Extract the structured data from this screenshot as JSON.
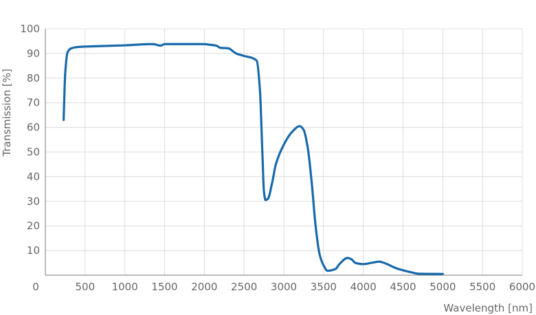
{
  "chart_data": {
    "type": "line",
    "title": "",
    "xlabel": "Wavelength [nm]",
    "ylabel": "Transmission [%]",
    "xlim": [
      0,
      6000
    ],
    "ylim": [
      0,
      100
    ],
    "grid": true,
    "x_ticks": [
      0,
      500,
      1000,
      1500,
      2000,
      2500,
      3000,
      3500,
      4000,
      4500,
      5000,
      5500,
      6000
    ],
    "y_ticks": [
      10,
      20,
      30,
      40,
      50,
      60,
      70,
      80,
      90,
      100
    ],
    "x_tick_labels": [
      "0",
      "500",
      "1000",
      "1500",
      "2000",
      "2500",
      "3000",
      "3500",
      "4000",
      "4500",
      "5000",
      "5500",
      "6000"
    ],
    "y_tick_labels": [
      "10",
      "20",
      "30",
      "40",
      "50",
      "60",
      "70",
      "80",
      "90",
      "100"
    ],
    "series": [
      {
        "color": "#1769aa",
        "x": [
          230,
          250,
          280,
          320,
          400,
          500,
          700,
          1000,
          1350,
          1450,
          1500,
          1700,
          2000,
          2050,
          2150,
          2200,
          2300,
          2400,
          2500,
          2600,
          2660,
          2700,
          2730,
          2750,
          2770,
          2800,
          2850,
          2900,
          3000,
          3100,
          3200,
          3250,
          3300,
          3350,
          3400,
          3450,
          3500,
          3550,
          3650,
          3700,
          3800,
          3850,
          3900,
          4000,
          4100,
          4200,
          4300,
          4400,
          4500,
          4600,
          4700,
          5000
        ],
        "y": [
          63,
          82,
          90.5,
          92,
          92.6,
          92.8,
          93,
          93.3,
          93.8,
          93.2,
          93.8,
          93.8,
          93.8,
          93.6,
          93.2,
          92.3,
          92.1,
          90,
          89,
          88.2,
          87,
          75,
          50,
          34,
          30.5,
          31,
          37,
          45,
          53,
          58,
          60.5,
          59,
          52,
          38,
          20,
          8.5,
          4,
          1.8,
          2.5,
          4.5,
          7,
          6.5,
          5,
          4.5,
          5,
          5.5,
          4.5,
          3,
          2,
          1.2,
          0.6,
          0.5
        ]
      }
    ]
  }
}
